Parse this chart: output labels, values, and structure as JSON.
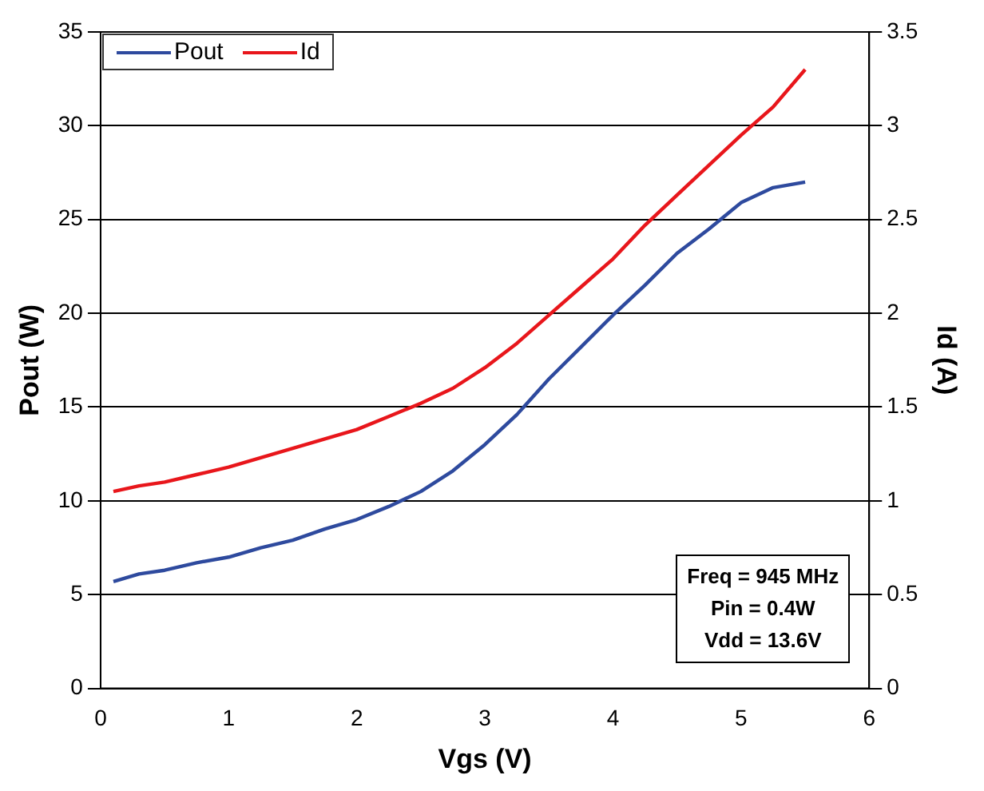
{
  "chart_data": {
    "type": "line",
    "xlabel": "Vgs (V)",
    "ylabel": "Pout (W)",
    "y2label": "Id (A)",
    "x": [
      0.1,
      0.3,
      0.5,
      0.75,
      1,
      1.25,
      1.5,
      1.75,
      2,
      2.25,
      2.5,
      2.75,
      3,
      3.25,
      3.5,
      3.75,
      4,
      4.25,
      4.5,
      4.75,
      5,
      5.25,
      5.5
    ],
    "series": [
      {
        "name": "Pout",
        "color": "#2e4a9e",
        "values": [
          5.7,
          6.1,
          6.3,
          6.7,
          7.0,
          7.5,
          7.9,
          8.5,
          9.0,
          9.7,
          10.5,
          11.6,
          13.0,
          14.6,
          16.5,
          18.2,
          19.9,
          21.5,
          23.2,
          24.5,
          25.9,
          26.7,
          27.0
        ]
      },
      {
        "name": "Id",
        "color": "#e8161b",
        "axis": "y2",
        "values": [
          1.05,
          1.08,
          1.1,
          1.14,
          1.18,
          1.23,
          1.28,
          1.33,
          1.38,
          1.45,
          1.52,
          1.6,
          1.71,
          1.84,
          1.99,
          2.14,
          2.29,
          2.47,
          2.63,
          2.79,
          2.95,
          3.1,
          3.3
        ]
      }
    ],
    "xlim": [
      0,
      6
    ],
    "xticks": [
      0,
      1,
      2,
      3,
      4,
      5,
      6
    ],
    "ylim": [
      0,
      35
    ],
    "yticks": [
      0,
      5,
      10,
      15,
      20,
      25,
      30,
      35
    ],
    "y2lim": [
      0,
      3.5
    ],
    "y2ticks": [
      0,
      0.5,
      1,
      1.5,
      2,
      2.5,
      3,
      3.5
    ],
    "grid": "y",
    "legend": "top left",
    "marker": "none",
    "line_style": "solid",
    "annotations": [
      "Freq = 945 MHz",
      "Pin = 0.4W",
      "Vdd = 13.6V"
    ]
  }
}
